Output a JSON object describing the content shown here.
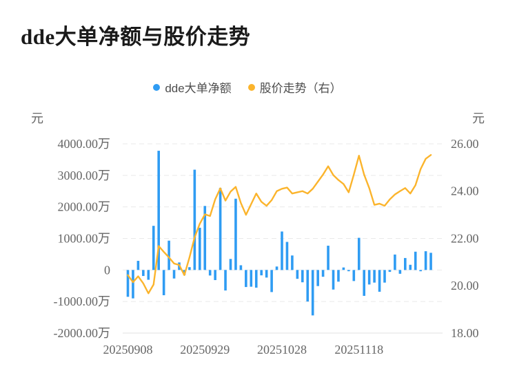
{
  "title": "dde大单净额与股价走势",
  "legend": {
    "items": [
      {
        "label": "dde大单净额",
        "color": "#2F9CF3",
        "marker": "dot"
      },
      {
        "label": "股价走势（右）",
        "color": "#FBB42C",
        "marker": "dot"
      }
    ]
  },
  "chart_data": {
    "type": "bar",
    "combo": "bar+line, dual y-axis",
    "title": "dde大单净额与股价走势",
    "grid": "horizontal dashed gridlines, solid baseline",
    "legend_position": "top-center",
    "x_axis": {
      "tick_labels": [
        "20250908",
        "20250929",
        "20251028",
        "20251118"
      ],
      "tick_indices": [
        0,
        15,
        30,
        45
      ],
      "num_points": 60
    },
    "left_axis": {
      "unit": "元",
      "min_wan": -2000,
      "max_wan": 4000,
      "tick_labels": [
        "4000.00万",
        "3000.00万",
        "2000.00万",
        "1000.00万",
        "0",
        "-1000.00万",
        "-2000.00万"
      ]
    },
    "right_axis": {
      "unit": "元",
      "min": 18,
      "max": 26,
      "tick_labels": [
        "26.00",
        "24.00",
        "22.00",
        "20.00",
        "18.00"
      ]
    },
    "series": [
      {
        "name": "dde大单净额",
        "type": "bar",
        "axis": "left",
        "unit": "万元",
        "color": "#2F9CF3",
        "values": [
          -850,
          -900,
          290,
          -190,
          -310,
          1400,
          3780,
          -800,
          930,
          -270,
          240,
          -160,
          90,
          3180,
          1340,
          2030,
          -175,
          -320,
          2600,
          -650,
          350,
          2260,
          150,
          -540,
          -530,
          -560,
          -170,
          -240,
          -700,
          110,
          1220,
          890,
          460,
          -280,
          -390,
          -1000,
          -1440,
          -510,
          -215,
          770,
          -620,
          -370,
          80,
          -40,
          -350,
          1020,
          -820,
          -460,
          -400,
          -690,
          -400,
          -60,
          490,
          -120,
          380,
          165,
          580,
          -40,
          595,
          545
        ]
      },
      {
        "name": "股价走势（右）",
        "type": "line",
        "axis": "right",
        "unit": "元",
        "color": "#FBB42C",
        "values": [
          20.45,
          20.15,
          20.4,
          20.1,
          19.68,
          20.05,
          21.68,
          21.43,
          21.2,
          20.94,
          20.88,
          20.45,
          21.2,
          22.05,
          22.62,
          23.02,
          22.95,
          23.65,
          24.12,
          23.6,
          23.98,
          24.18,
          23.5,
          23.0,
          23.45,
          23.9,
          23.55,
          23.38,
          23.62,
          24.0,
          24.1,
          24.15,
          23.9,
          23.95,
          24.0,
          23.9,
          24.1,
          24.4,
          24.7,
          25.05,
          24.68,
          24.47,
          24.3,
          23.95,
          24.7,
          25.5,
          24.7,
          24.13,
          23.42,
          23.47,
          23.38,
          23.65,
          23.86,
          24.0,
          24.13,
          23.9,
          24.25,
          24.93,
          25.37,
          25.53
        ]
      }
    ]
  }
}
